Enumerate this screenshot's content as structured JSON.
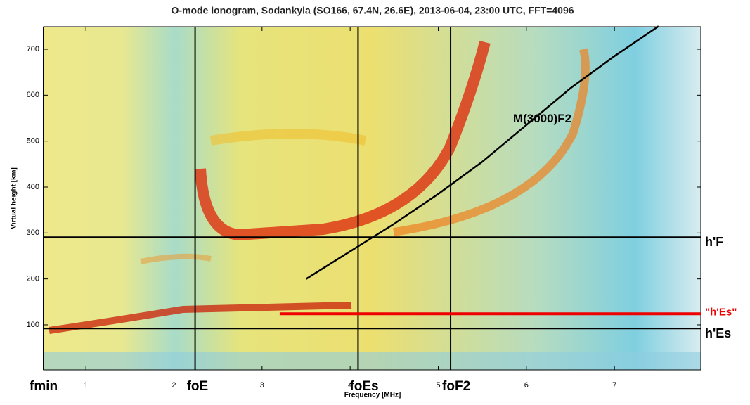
{
  "chart_data": {
    "type": "ionogram",
    "title": "O-mode ionogram, Sodankyla (SO166, 67.4N, 26.6E), 2013-06-04, 23:00 UTC, FFT=4096",
    "xlabel": "Frequency [MHz]",
    "ylabel": "Virtual height [km]",
    "xlim": [
      0.52,
      7.98
    ],
    "ylim": [
      2,
      749
    ],
    "xticks": [
      1,
      2,
      3,
      4,
      5,
      6,
      7
    ],
    "yticks": [
      100,
      200,
      300,
      400,
      500,
      600,
      700
    ],
    "vertical_markers": [
      {
        "label": "fmin",
        "value": 0.52,
        "color": "#000000"
      },
      {
        "label": "foE",
        "value": 2.24,
        "color": "#000000"
      },
      {
        "label": "foEs",
        "value": 4.09,
        "color": "#000000"
      },
      {
        "label": "foF2",
        "value": 5.14,
        "color": "#000000"
      }
    ],
    "horizontal_markers": [
      {
        "label": "h'F",
        "value": 291,
        "color": "#000000"
      },
      {
        "label": "\"h'Es\"",
        "value": 124,
        "color": "#ee0000"
      },
      {
        "label": "h'Es",
        "value": 92,
        "color": "#000000"
      }
    ],
    "series": [
      {
        "name": "M(3000)F2",
        "color": "#000000",
        "x": [
          3.5,
          4.0,
          4.5,
          5.0,
          5.5,
          6.0,
          6.5,
          7.0,
          7.5
        ],
        "values": [
          200,
          260,
          320,
          385,
          455,
          535,
          615,
          685,
          750
        ]
      }
    ]
  }
}
